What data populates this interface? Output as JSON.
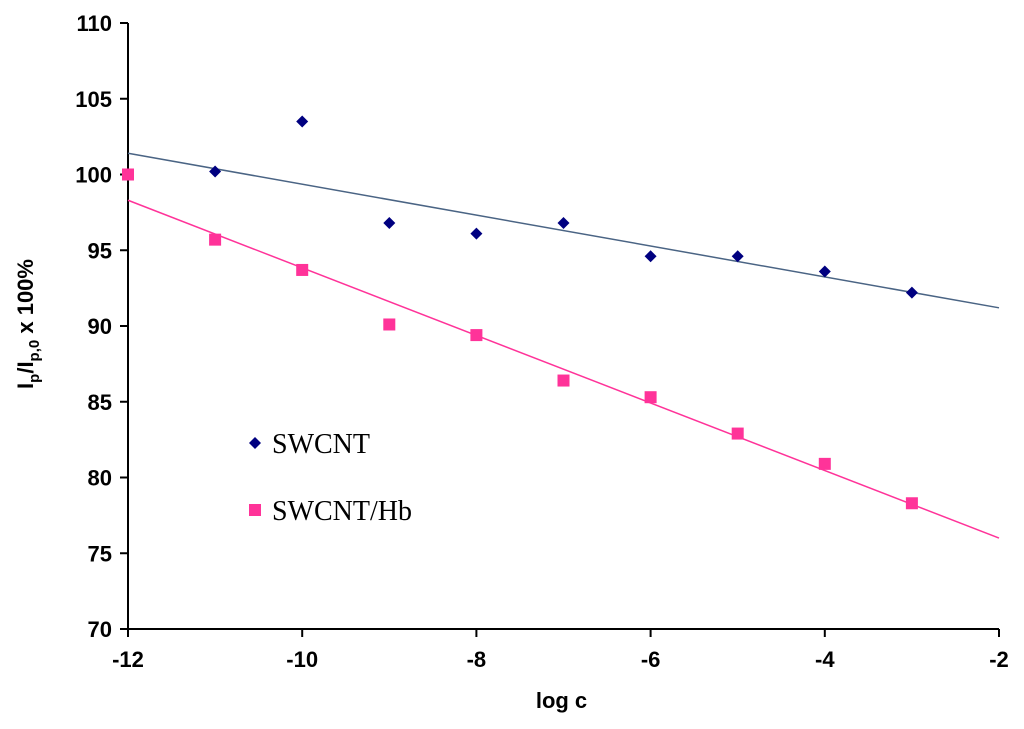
{
  "chart_data": {
    "type": "scatter",
    "title": "",
    "xlabel": "log c",
    "ylabel": {
      "main": "I",
      "sub1": "p",
      "sep": "/I",
      "sub2": "p,0",
      "tail": " x 100%"
    },
    "xlim": [
      -12,
      -2
    ],
    "ylim": [
      70,
      110
    ],
    "xticks": [
      -12,
      -10,
      -8,
      -6,
      -4,
      -2
    ],
    "yticks": [
      70,
      75,
      80,
      85,
      90,
      95,
      100,
      105,
      110
    ],
    "grid": false,
    "legend_position": "center-left",
    "series": [
      {
        "name": "SWCNT",
        "marker": "diamond",
        "color": "#000080",
        "line_color": "#4A6484",
        "x": [
          -11,
          -10,
          -9,
          -8,
          -7,
          -6,
          -5,
          -4,
          -3
        ],
        "y": [
          100.2,
          103.5,
          96.8,
          96.1,
          96.8,
          94.6,
          94.6,
          93.6,
          92.2
        ],
        "trendline": {
          "x": [
            -12,
            -2
          ],
          "y": [
            101.4,
            91.2
          ]
        }
      },
      {
        "name": "SWCNT/Hb",
        "marker": "square",
        "color": "#FF3399",
        "line_color": "#FF3399",
        "x": [
          -12,
          -11,
          -10,
          -9,
          -8,
          -7,
          -6,
          -5,
          -4,
          -3
        ],
        "y": [
          100.0,
          95.7,
          93.7,
          90.1,
          89.4,
          86.4,
          85.3,
          82.9,
          80.9,
          78.3
        ],
        "trendline": {
          "x": [
            -12,
            -2
          ],
          "y": [
            98.3,
            76.0
          ]
        }
      }
    ]
  }
}
